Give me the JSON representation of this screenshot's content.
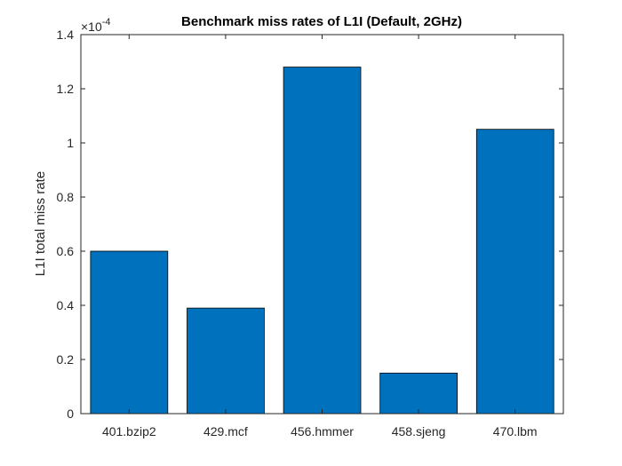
{
  "chart_data": {
    "type": "bar",
    "title": "Benchmark miss rates of L1I (Default, 2GHz)",
    "xlabel": "",
    "ylabel": "L1I total miss rate",
    "y_exponent_label": "×10",
    "y_exponent_power": "-4",
    "categories": [
      "401.bzip2",
      "429.mcf",
      "456.hmmer",
      "458.sjeng",
      "470.lbm"
    ],
    "values": [
      0.6,
      0.39,
      1.28,
      0.15,
      1.05
    ],
    "ylim": [
      0,
      1.4
    ],
    "yticks": [
      "0",
      "0.2",
      "0.4",
      "0.6",
      "0.8",
      "1",
      "1.2",
      "1.4"
    ],
    "grid": false,
    "bar_color": "#0072BD"
  }
}
